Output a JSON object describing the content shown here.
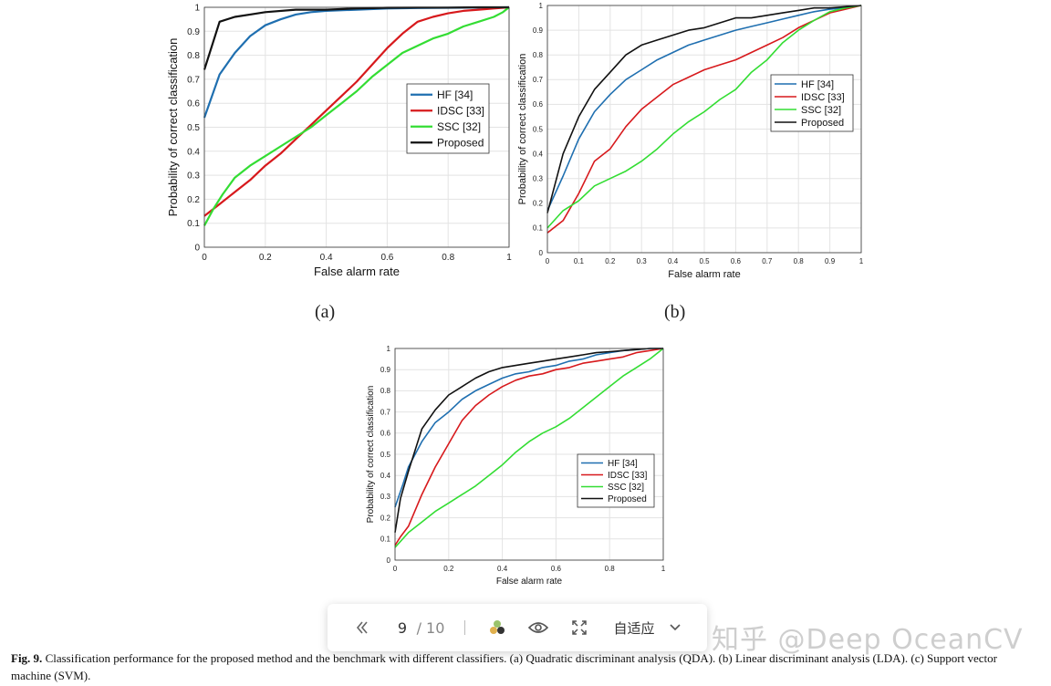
{
  "chart_data": [
    {
      "id": "a",
      "type": "line",
      "sublabel": "(a)",
      "xlabel": "False alarm rate",
      "ylabel": "Probability of correct classification",
      "xlim": [
        0,
        1
      ],
      "ylim": [
        0,
        1
      ],
      "grid": true,
      "legend_position": "right-middle",
      "xticks": [
        "0",
        "0.2",
        "0.4",
        "0.6",
        "0.8",
        "1"
      ],
      "yticks": [
        "0",
        "0.1",
        "0.2",
        "0.3",
        "0.4",
        "0.5",
        "0.6",
        "0.7",
        "0.8",
        "0.9",
        "1"
      ],
      "series": [
        {
          "name": "HF [34]",
          "color": "#1f6fb0",
          "x": [
            0,
            0.05,
            0.1,
            0.15,
            0.2,
            0.25,
            0.3,
            0.35,
            0.4,
            0.5,
            0.6,
            0.7,
            0.8,
            0.9,
            1.0
          ],
          "y": [
            0.54,
            0.72,
            0.81,
            0.88,
            0.925,
            0.95,
            0.97,
            0.98,
            0.985,
            0.99,
            0.995,
            0.997,
            0.998,
            0.999,
            1.0
          ]
        },
        {
          "name": "IDSC [33]",
          "color": "#d7191c",
          "x": [
            0,
            0.05,
            0.1,
            0.15,
            0.2,
            0.25,
            0.3,
            0.35,
            0.4,
            0.45,
            0.5,
            0.55,
            0.6,
            0.65,
            0.7,
            0.75,
            0.8,
            0.85,
            0.9,
            0.95,
            1.0
          ],
          "y": [
            0.13,
            0.18,
            0.23,
            0.28,
            0.34,
            0.39,
            0.45,
            0.51,
            0.57,
            0.63,
            0.69,
            0.76,
            0.83,
            0.89,
            0.94,
            0.96,
            0.975,
            0.985,
            0.99,
            0.995,
            1.0
          ]
        },
        {
          "name": "SSC [32]",
          "color": "#33dd33",
          "x": [
            0,
            0.03,
            0.06,
            0.1,
            0.15,
            0.2,
            0.25,
            0.3,
            0.35,
            0.4,
            0.45,
            0.5,
            0.55,
            0.6,
            0.65,
            0.7,
            0.75,
            0.8,
            0.85,
            0.9,
            0.95,
            0.98,
            1.0
          ],
          "y": [
            0.09,
            0.16,
            0.22,
            0.29,
            0.34,
            0.38,
            0.42,
            0.46,
            0.5,
            0.55,
            0.6,
            0.65,
            0.71,
            0.76,
            0.81,
            0.84,
            0.87,
            0.89,
            0.92,
            0.94,
            0.96,
            0.98,
            1.0
          ]
        },
        {
          "name": "Proposed",
          "color": "#111111",
          "x": [
            0,
            0.02,
            0.05,
            0.1,
            0.15,
            0.2,
            0.3,
            0.4,
            0.5,
            0.6,
            0.7,
            0.8,
            0.9,
            1.0
          ],
          "y": [
            0.74,
            0.82,
            0.94,
            0.96,
            0.97,
            0.98,
            0.99,
            0.99,
            0.995,
            0.998,
            0.999,
            0.999,
            1.0,
            1.0
          ]
        }
      ]
    },
    {
      "id": "b",
      "type": "line",
      "sublabel": "(b)",
      "xlabel": "False alarm rate",
      "ylabel": "Probability of correct classification",
      "xlim": [
        0,
        1
      ],
      "ylim": [
        0,
        1
      ],
      "grid": true,
      "legend_position": "top-right",
      "xticks": [
        "0",
        "0.1",
        "0.2",
        "0.3",
        "0.4",
        "0.5",
        "0.6",
        "0.7",
        "0.8",
        "0.9",
        "1"
      ],
      "yticks": [
        "0",
        "0.1",
        "0.2",
        "0.3",
        "0.4",
        "0.5",
        "0.6",
        "0.7",
        "0.8",
        "0.9",
        "1"
      ],
      "series": [
        {
          "name": "HF [34]",
          "color": "#1f6fb0",
          "x": [
            0,
            0.05,
            0.1,
            0.15,
            0.2,
            0.25,
            0.3,
            0.35,
            0.4,
            0.45,
            0.5,
            0.55,
            0.6,
            0.65,
            0.7,
            0.75,
            0.8,
            0.85,
            0.9,
            0.95,
            1.0
          ],
          "y": [
            0.17,
            0.31,
            0.46,
            0.57,
            0.64,
            0.7,
            0.74,
            0.78,
            0.81,
            0.84,
            0.86,
            0.88,
            0.9,
            0.915,
            0.93,
            0.945,
            0.96,
            0.975,
            0.985,
            0.99,
            1.0
          ]
        },
        {
          "name": "IDSC [33]",
          "color": "#d7191c",
          "x": [
            0,
            0.05,
            0.1,
            0.15,
            0.2,
            0.25,
            0.3,
            0.35,
            0.4,
            0.45,
            0.5,
            0.55,
            0.6,
            0.65,
            0.7,
            0.75,
            0.8,
            0.85,
            0.9,
            0.95,
            1.0
          ],
          "y": [
            0.08,
            0.13,
            0.24,
            0.37,
            0.42,
            0.51,
            0.58,
            0.63,
            0.68,
            0.71,
            0.74,
            0.76,
            0.78,
            0.81,
            0.84,
            0.87,
            0.91,
            0.94,
            0.97,
            0.985,
            1.0
          ]
        },
        {
          "name": "SSC [32]",
          "color": "#33dd33",
          "x": [
            0,
            0.05,
            0.1,
            0.15,
            0.2,
            0.25,
            0.3,
            0.35,
            0.4,
            0.45,
            0.5,
            0.55,
            0.6,
            0.65,
            0.7,
            0.75,
            0.8,
            0.85,
            0.9,
            0.95,
            1.0
          ],
          "y": [
            0.1,
            0.17,
            0.21,
            0.27,
            0.3,
            0.33,
            0.37,
            0.42,
            0.48,
            0.53,
            0.57,
            0.62,
            0.66,
            0.73,
            0.78,
            0.85,
            0.9,
            0.94,
            0.975,
            0.99,
            1.0
          ]
        },
        {
          "name": "Proposed",
          "color": "#111111",
          "x": [
            0,
            0.05,
            0.1,
            0.15,
            0.2,
            0.25,
            0.3,
            0.35,
            0.4,
            0.45,
            0.5,
            0.55,
            0.6,
            0.65,
            0.7,
            0.75,
            0.8,
            0.85,
            0.9,
            0.95,
            1.0
          ],
          "y": [
            0.16,
            0.4,
            0.55,
            0.66,
            0.73,
            0.8,
            0.84,
            0.86,
            0.88,
            0.9,
            0.91,
            0.93,
            0.95,
            0.95,
            0.96,
            0.97,
            0.98,
            0.99,
            0.99,
            0.995,
            1.0
          ]
        }
      ]
    },
    {
      "id": "c",
      "type": "line",
      "sublabel": "",
      "xlabel": "False alarm rate",
      "ylabel": "Probability of correct classification",
      "xlim": [
        0,
        1
      ],
      "ylim": [
        0,
        1
      ],
      "grid": true,
      "legend_position": "right-middle",
      "xticks": [
        "0",
        "0.2",
        "0.4",
        "0.6",
        "0.8",
        "1"
      ],
      "yticks": [
        "0",
        "0.1",
        "0.2",
        "0.3",
        "0.4",
        "0.5",
        "0.6",
        "0.7",
        "0.8",
        "0.9",
        "1"
      ],
      "series": [
        {
          "name": "HF [34]",
          "color": "#1f6fb0",
          "x": [
            0,
            0.03,
            0.05,
            0.1,
            0.15,
            0.2,
            0.25,
            0.3,
            0.35,
            0.4,
            0.45,
            0.5,
            0.55,
            0.6,
            0.65,
            0.7,
            0.75,
            0.8,
            0.85,
            0.9,
            0.95,
            1.0
          ],
          "y": [
            0.25,
            0.36,
            0.44,
            0.56,
            0.65,
            0.7,
            0.76,
            0.8,
            0.83,
            0.86,
            0.88,
            0.89,
            0.91,
            0.92,
            0.94,
            0.95,
            0.97,
            0.98,
            0.99,
            0.995,
            1.0,
            1.0
          ]
        },
        {
          "name": "IDSC [33]",
          "color": "#d7191c",
          "x": [
            0,
            0.02,
            0.05,
            0.1,
            0.15,
            0.2,
            0.25,
            0.3,
            0.35,
            0.4,
            0.45,
            0.5,
            0.55,
            0.6,
            0.65,
            0.7,
            0.75,
            0.8,
            0.85,
            0.9,
            0.95,
            1.0
          ],
          "y": [
            0.07,
            0.11,
            0.16,
            0.31,
            0.44,
            0.55,
            0.66,
            0.73,
            0.78,
            0.82,
            0.85,
            0.87,
            0.88,
            0.9,
            0.91,
            0.93,
            0.94,
            0.95,
            0.96,
            0.98,
            0.99,
            1.0
          ]
        },
        {
          "name": "SSC [32]",
          "color": "#33dd33",
          "x": [
            0,
            0.05,
            0.1,
            0.15,
            0.2,
            0.25,
            0.3,
            0.35,
            0.4,
            0.45,
            0.5,
            0.55,
            0.6,
            0.65,
            0.7,
            0.75,
            0.8,
            0.85,
            0.9,
            0.95,
            1.0
          ],
          "y": [
            0.06,
            0.13,
            0.18,
            0.23,
            0.27,
            0.31,
            0.35,
            0.4,
            0.45,
            0.51,
            0.56,
            0.6,
            0.63,
            0.67,
            0.72,
            0.77,
            0.82,
            0.87,
            0.91,
            0.95,
            1.0
          ]
        },
        {
          "name": "Proposed",
          "color": "#111111",
          "x": [
            0,
            0.02,
            0.05,
            0.1,
            0.15,
            0.2,
            0.25,
            0.3,
            0.35,
            0.4,
            0.45,
            0.5,
            0.55,
            0.6,
            0.65,
            0.7,
            0.75,
            0.8,
            0.85,
            0.9,
            0.95,
            1.0
          ],
          "y": [
            0.13,
            0.29,
            0.42,
            0.62,
            0.71,
            0.78,
            0.82,
            0.86,
            0.89,
            0.91,
            0.92,
            0.93,
            0.94,
            0.95,
            0.96,
            0.97,
            0.98,
            0.985,
            0.99,
            0.995,
            1.0,
            1.0
          ]
        }
      ]
    }
  ],
  "viewer": {
    "page_current": "9",
    "page_total": "/ 10",
    "fit_label": "自适应",
    "icons": {
      "prev": "double-chevron-left-icon",
      "theme": "color-dots-icon",
      "view": "eye-icon",
      "fullscreen": "fullscreen-icon",
      "dropdown": "chevron-down-icon"
    }
  },
  "watermark": "知乎 @Deep OceanCV",
  "caption": {
    "label": "Fig. 9.",
    "text": "Classification performance for the proposed method and the benchmark with different classifiers. (a) Quadratic discriminant analysis (QDA). (b) Linear discriminant analysis (LDA). (c) Support vector machine (SVM)."
  }
}
